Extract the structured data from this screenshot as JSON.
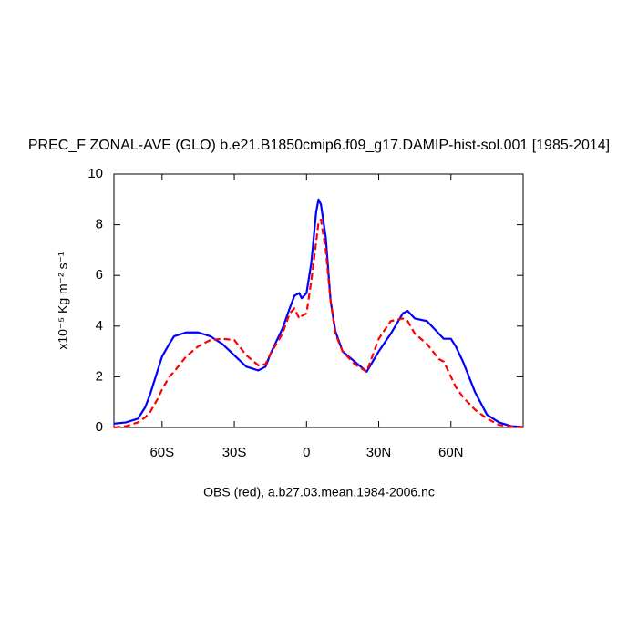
{
  "chart_data": {
    "type": "line",
    "title": "PREC_F ZONAL-AVE (GLO) b.e21.B1850cmip6.f09_g17.DAMIP-hist-sol.001 [1985-2014]",
    "x_label": "OBS (red), a.b27.03.mean.1984-2006.nc",
    "y_label": "x10⁻⁵ Kg m⁻² s⁻¹",
    "x": [
      -80,
      -75,
      -70,
      -67,
      -65,
      -62,
      -60,
      -57,
      -55,
      -50,
      -45,
      -40,
      -35,
      -30,
      -25,
      -20,
      -17,
      -15,
      -10,
      -7,
      -5,
      -3,
      -2,
      0,
      2,
      4,
      5,
      6,
      8,
      10,
      12,
      15,
      20,
      25,
      30,
      35,
      40,
      42,
      45,
      50,
      55,
      57,
      60,
      62,
      65,
      70,
      75,
      80,
      85,
      90
    ],
    "series": [
      {
        "color": "#0000ff",
        "dash": false,
        "values": [
          0.15,
          0.2,
          0.35,
          0.8,
          1.3,
          2.2,
          2.8,
          3.3,
          3.6,
          3.75,
          3.75,
          3.6,
          3.3,
          2.85,
          2.4,
          2.25,
          2.4,
          2.9,
          3.9,
          4.7,
          5.2,
          5.3,
          5.1,
          5.3,
          6.5,
          8.5,
          9.0,
          8.8,
          7.5,
          5.0,
          3.8,
          3.0,
          2.6,
          2.2,
          3.0,
          3.7,
          4.5,
          4.6,
          4.3,
          4.2,
          3.7,
          3.5,
          3.5,
          3.2,
          2.6,
          1.4,
          0.5,
          0.2,
          0.05,
          0.02
        ]
      },
      {
        "color": "#ff0000",
        "dash": true,
        "values": [
          0,
          0.05,
          0.2,
          0.4,
          0.6,
          1.1,
          1.5,
          2.0,
          2.2,
          2.8,
          3.2,
          3.45,
          3.5,
          3.45,
          2.85,
          2.45,
          2.5,
          2.9,
          3.7,
          4.5,
          4.7,
          4.3,
          4.4,
          4.5,
          5.8,
          7.3,
          8.1,
          8.2,
          7.0,
          5.0,
          3.7,
          3.0,
          2.5,
          2.2,
          3.5,
          4.2,
          4.3,
          4.2,
          3.7,
          3.3,
          2.7,
          2.6,
          2.0,
          1.6,
          1.2,
          0.7,
          0.35,
          0.1,
          0.03,
          0.01
        ]
      }
    ],
    "xlim": [
      -80,
      90
    ],
    "xticks": [
      {
        "value": -60,
        "label": "60S"
      },
      {
        "value": -30,
        "label": "30S"
      },
      0,
      {
        "value": 30,
        "label": "30N"
      },
      {
        "value": 60,
        "label": "60N"
      }
    ],
    "ylim": [
      0,
      10
    ],
    "yticks": [
      0,
      2,
      4,
      6,
      8,
      10
    ]
  }
}
